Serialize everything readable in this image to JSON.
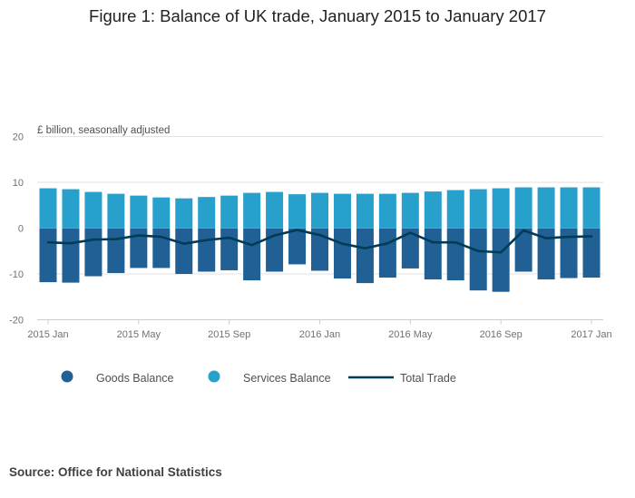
{
  "title": "Figure 1: Balance of UK trade, January 2015 to January 2017",
  "source": "Source: Office for National Statistics",
  "colors": {
    "goods": "#206095",
    "services": "#27a0cc",
    "total": "#003c57",
    "grid": "#e2e2e2",
    "axis": "#cccccc"
  },
  "chart_data": {
    "type": "bar",
    "stacked": true,
    "title": "Figure 1: Balance of UK trade, January 2015 to January 2017",
    "ylabel": "£ billion, seasonally adjusted",
    "xlabel": "",
    "ylim": [
      -20,
      20
    ],
    "yticks": [
      20,
      10,
      0,
      -10,
      -20
    ],
    "grid": true,
    "legend_position": "bottom",
    "categories": [
      "2015 Jan",
      "2015 Feb",
      "2015 Mar",
      "2015 Apr",
      "2015 May",
      "2015 Jun",
      "2015 Jul",
      "2015 Aug",
      "2015 Sep",
      "2015 Oct",
      "2015 Nov",
      "2015 Dec",
      "2016 Jan",
      "2016 Feb",
      "2016 Mar",
      "2016 Apr",
      "2016 May",
      "2016 Jun",
      "2016 Jul",
      "2016 Aug",
      "2016 Sep",
      "2016 Oct",
      "2016 Nov",
      "2016 Dec",
      "2017 Jan"
    ],
    "xticks": [
      {
        "index": 0,
        "label": "2015 Jan"
      },
      {
        "index": 4,
        "label": "2015 May"
      },
      {
        "index": 8,
        "label": "2015 Sep"
      },
      {
        "index": 12,
        "label": "2016 Jan"
      },
      {
        "index": 16,
        "label": "2016 May"
      },
      {
        "index": 20,
        "label": "2016 Sep"
      },
      {
        "index": 24,
        "label": "2017 Jan"
      }
    ],
    "series": [
      {
        "name": "Goods Balance",
        "kind": "bar",
        "values": [
          -11.8,
          -11.9,
          -10.5,
          -9.8,
          -8.7,
          -8.7,
          -10.0,
          -9.5,
          -9.2,
          -11.4,
          -9.5,
          -7.9,
          -9.3,
          -11.0,
          -12.0,
          -10.8,
          -8.8,
          -11.2,
          -11.4,
          -13.6,
          -13.9,
          -9.5,
          -11.2,
          -10.9,
          -10.8
        ]
      },
      {
        "name": "Services Balance",
        "kind": "bar",
        "values": [
          8.7,
          8.5,
          7.9,
          7.5,
          7.1,
          6.7,
          6.5,
          6.8,
          7.1,
          7.7,
          7.9,
          7.4,
          7.7,
          7.5,
          7.5,
          7.5,
          7.7,
          8.0,
          8.3,
          8.5,
          8.7,
          8.9,
          8.9,
          8.9,
          8.9
        ]
      },
      {
        "name": "Total Trade",
        "kind": "line",
        "values": [
          -3.1,
          -3.3,
          -2.5,
          -2.4,
          -1.6,
          -1.9,
          -3.4,
          -2.6,
          -2.1,
          -3.7,
          -1.6,
          -0.4,
          -1.5,
          -3.4,
          -4.4,
          -3.3,
          -1.0,
          -3.1,
          -3.1,
          -5.0,
          -5.3,
          -0.5,
          -2.2,
          -1.9,
          -1.8
        ]
      }
    ]
  }
}
